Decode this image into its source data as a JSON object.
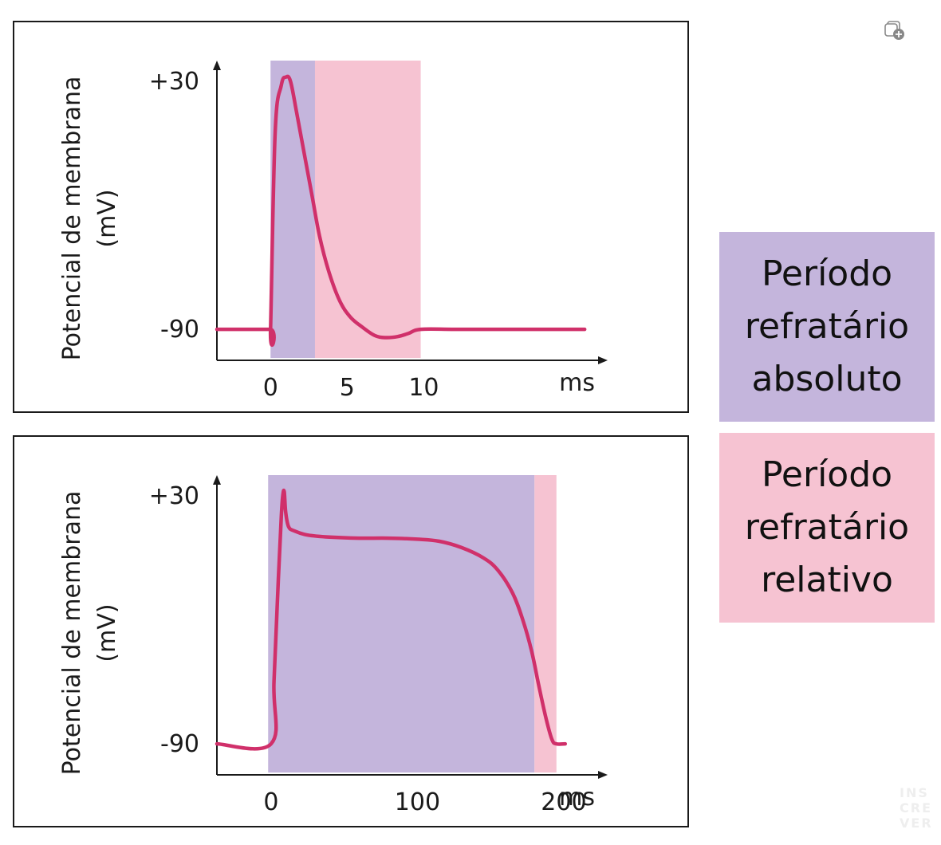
{
  "colors": {
    "absolute_period": "#c4b5dc",
    "relative_period": "#f6c3d2",
    "trace": "#d0306a",
    "axis": "#1a1a1a"
  },
  "legend": {
    "absolute": {
      "lines": [
        "Período",
        "refratário",
        "absoluto"
      ],
      "color": "#c4b5dc"
    },
    "relative": {
      "lines": [
        "Período",
        "refratário",
        "relativo"
      ],
      "color": "#f6c3d2"
    }
  },
  "watermark": [
    "INS",
    "CRE",
    "VER"
  ],
  "corner_icon": "add-to-collection-icon",
  "chart_data": [
    {
      "type": "line",
      "ylabel_lines": [
        "Potencial de membrana",
        "(mV)"
      ],
      "xunit": "ms",
      "xticks": [
        0,
        5,
        10
      ],
      "xtick_labels": [
        "0",
        "5",
        "10"
      ],
      "yticks": [
        30,
        -90
      ],
      "ytick_labels": [
        "+30",
        "-90"
      ],
      "xlim": [
        -3.5,
        22
      ],
      "ylim": [
        -105,
        40
      ],
      "shaded_regions": [
        {
          "period": "absolute",
          "x": [
            0,
            2.9
          ]
        },
        {
          "period": "relative",
          "x": [
            2.9,
            9.8
          ]
        }
      ],
      "series": [
        {
          "x": [
            -3.5,
            -0.05,
            0,
            0.3,
            0.7,
            1.0,
            1.3,
            1.7,
            2.2,
            2.7,
            3.2,
            3.8,
            4.5,
            5.2,
            6.0,
            6.8,
            7.5,
            8.3,
            9.0,
            9.8,
            12,
            15,
            18,
            20.5
          ],
          "y": [
            -90,
            -90,
            -90,
            5,
            28,
            32,
            30,
            15,
            -5,
            -25,
            -45,
            -62,
            -76,
            -84,
            -89,
            -93,
            -94,
            -93.5,
            -92,
            -90,
            -90,
            -90,
            -90,
            -90
          ]
        }
      ]
    },
    {
      "type": "line",
      "ylabel_lines": [
        "Potencial de membrana",
        "(mV)"
      ],
      "xunit": "ms",
      "xticks": [
        0,
        100,
        200
      ],
      "xtick_labels": [
        "0",
        "100",
        "200"
      ],
      "yticks": [
        30,
        -90
      ],
      "ytick_labels": [
        "+30",
        "-90"
      ],
      "xlim": [
        -37,
        230
      ],
      "ylim": [
        -105,
        40
      ],
      "shaded_regions": [
        {
          "period": "absolute",
          "x": [
            -2,
            180
          ]
        },
        {
          "period": "relative",
          "x": [
            180,
            195
          ]
        }
      ],
      "series": [
        {
          "x": [
            -37,
            0,
            2,
            5,
            7,
            8,
            9,
            10,
            12,
            16,
            25,
            40,
            60,
            80,
            100,
            115,
            130,
            145,
            155,
            165,
            172,
            178,
            183,
            188,
            192,
            195,
            201
          ],
          "y": [
            -90,
            -90,
            -60,
            -10,
            20,
            30,
            32,
            22,
            15,
            13,
            11,
            10,
            9.5,
            9.5,
            9,
            8,
            5,
            0,
            -6,
            -17,
            -30,
            -45,
            -62,
            -78,
            -88,
            -90,
            -90
          ]
        }
      ]
    }
  ]
}
